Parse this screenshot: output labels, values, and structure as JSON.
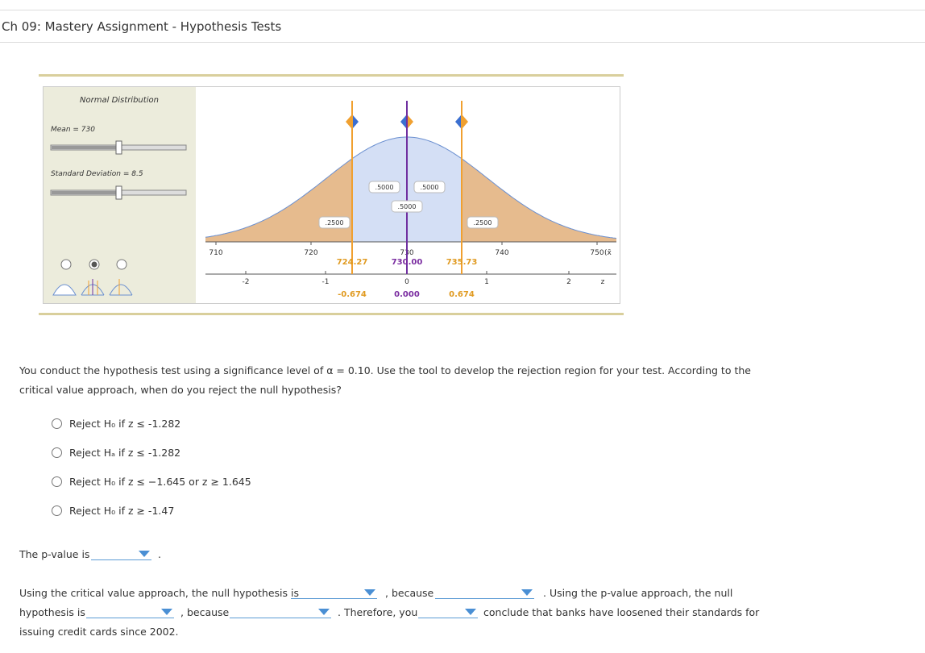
{
  "header": {
    "title": "Ch 09: Mastery Assignment - Hypothesis Tests"
  },
  "tool": {
    "title": "Normal Distribution",
    "mean_label": "Mean = 730",
    "sd_label": "Standard Deviation = 8.5",
    "areas": [
      ".2500",
      ".5000",
      ".5000",
      ".5000",
      ".2500"
    ],
    "x_ticks": [
      "710",
      "720",
      "730",
      "740",
      "750"
    ],
    "x_axis_label": "(x̄",
    "z_ticks": [
      "-2",
      "-1",
      "0",
      "1",
      "2"
    ],
    "z_axis_label": "z",
    "x_markers": [
      "724.27",
      "730.00",
      "735.73"
    ],
    "z_markers": [
      "-0.674",
      "0.000",
      "0.674"
    ]
  },
  "question": {
    "lines": [
      "You conduct the hypothesis test using a significance level of α = 0.10. Use the tool to develop the rejection region for your test. According to the",
      "critical value approach, when do you reject the null hypothesis?"
    ],
    "options": [
      "Reject H₀ if z ≤ -1.282",
      "Reject Hₐ if z ≤ -1.282",
      "Reject H₀ if z ≤ −1.645 or z ≥ 1.645",
      "Reject H₀ if z ≥ -1.47"
    ]
  },
  "pvalue": {
    "label": "The p-value is",
    "end": "."
  },
  "conclusion": {
    "segments": [
      "Using the critical value approach, the null hypothesis is",
      ", because",
      ". Using the p-value approach, the null",
      "hypothesis is",
      ", because",
      ". Therefore, you",
      "conclude that banks have loosened their standards for",
      "issuing credit cards since 2002."
    ]
  }
}
